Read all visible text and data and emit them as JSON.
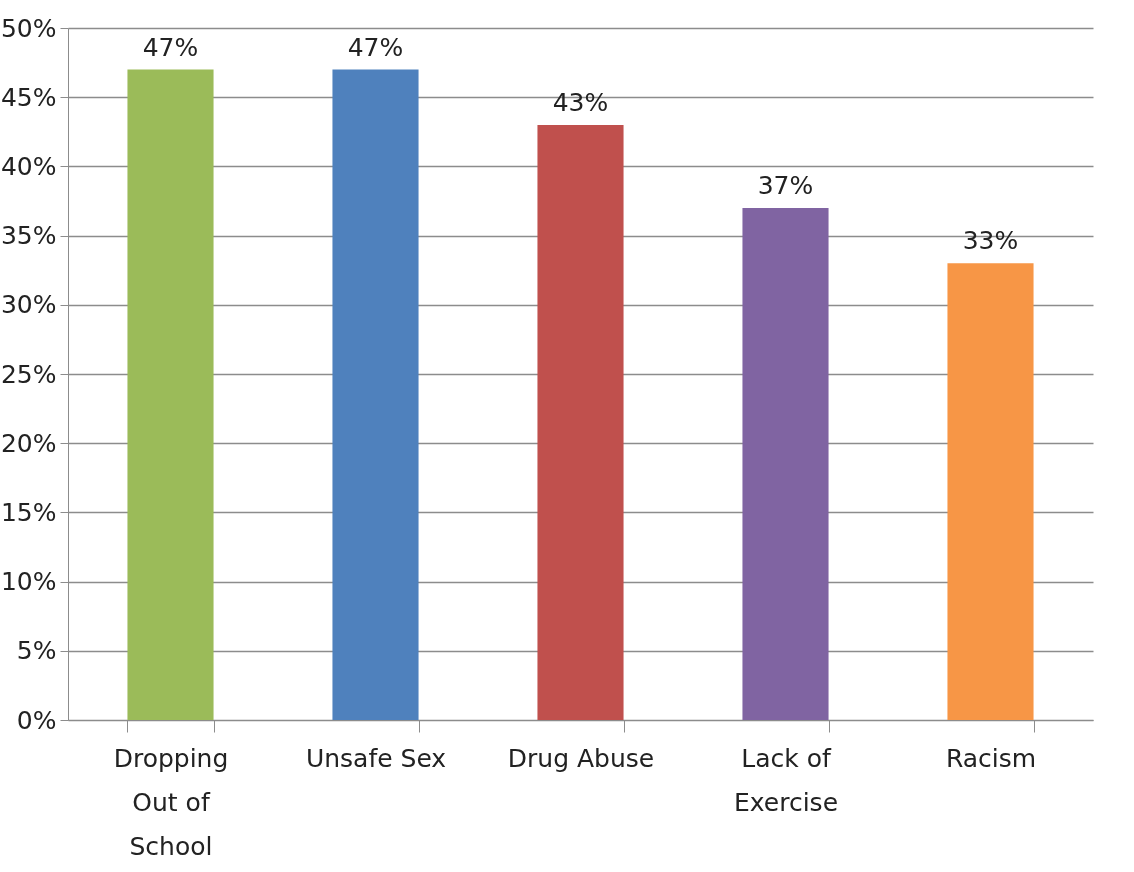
{
  "chart_data": {
    "type": "bar",
    "categories": [
      "Dropping Out of School",
      "Unsafe Sex",
      "Drug Abuse",
      "Lack of Exercise",
      "Racism"
    ],
    "values": [
      47,
      47,
      43,
      37,
      33
    ],
    "colors": [
      "#9bbb59",
      "#4f81bd",
      "#c0504d",
      "#8064a2",
      "#f79646"
    ],
    "value_labels": [
      "47%",
      "47%",
      "43%",
      "37%",
      "33%"
    ],
    "ylim": [
      0,
      50
    ],
    "yticks": [
      {
        "value": 0,
        "label": "0%"
      },
      {
        "value": 5,
        "label": "5%"
      },
      {
        "value": 10,
        "label": "10%"
      },
      {
        "value": 15,
        "label": "15%"
      },
      {
        "value": 20,
        "label": "20%"
      },
      {
        "value": 25,
        "label": "25%"
      },
      {
        "value": 30,
        "label": "30%"
      },
      {
        "value": 35,
        "label": "35%"
      },
      {
        "value": 40,
        "label": "40%"
      },
      {
        "value": 45,
        "label": "45%"
      },
      {
        "value": 50,
        "label": "50%"
      }
    ],
    "grid": "y",
    "legend": false
  }
}
